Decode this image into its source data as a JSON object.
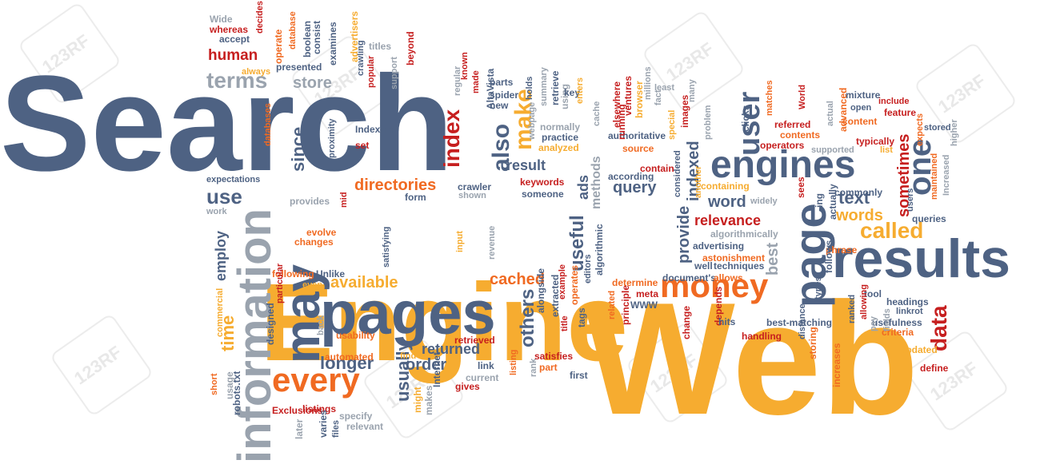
{
  "colors": {
    "slate": "#4e6283",
    "yellow": "#f6ac30",
    "orange": "#f06a22",
    "red": "#c61f1f",
    "grey": "#9aa3ae"
  },
  "watermark": "123RF",
  "words": [
    {
      "t": "Search",
      "c": "slate"
    },
    {
      "t": "Engine",
      "c": "yellow"
    },
    {
      "t": "Web",
      "c": "yellow"
    },
    {
      "t": "results",
      "c": "slate"
    },
    {
      "t": "pages",
      "c": "slate"
    },
    {
      "t": "information",
      "c": "grey"
    },
    {
      "t": "engines",
      "c": "slate"
    },
    {
      "t": "page",
      "c": "slate"
    },
    {
      "t": "money",
      "c": "orange"
    },
    {
      "t": "may",
      "c": "slate"
    },
    {
      "t": "every",
      "c": "orange"
    },
    {
      "t": "index",
      "c": "red"
    },
    {
      "t": "user",
      "c": "slate"
    },
    {
      "t": "one",
      "c": "slate"
    },
    {
      "t": "terms",
      "c": "grey"
    },
    {
      "t": "store",
      "c": "grey"
    },
    {
      "t": "human",
      "c": "red"
    },
    {
      "t": "called",
      "c": "yellow"
    },
    {
      "t": "also",
      "c": "slate"
    },
    {
      "t": "make",
      "c": "yellow"
    },
    {
      "t": "since",
      "c": "slate"
    },
    {
      "t": "use",
      "c": "slate"
    },
    {
      "t": "directories",
      "c": "orange"
    },
    {
      "t": "result",
      "c": "slate"
    },
    {
      "t": "query",
      "c": "slate"
    },
    {
      "t": "indexed",
      "c": "slate"
    },
    {
      "t": "sometimes",
      "c": "red"
    },
    {
      "t": "text",
      "c": "slate"
    },
    {
      "t": "word",
      "c": "slate"
    },
    {
      "t": "relevance",
      "c": "red"
    },
    {
      "t": "words",
      "c": "yellow"
    },
    {
      "t": "provide",
      "c": "slate"
    },
    {
      "t": "available",
      "c": "yellow"
    },
    {
      "t": "cached",
      "c": "orange"
    },
    {
      "t": "useful",
      "c": "slate"
    },
    {
      "t": "returned",
      "c": "slate"
    },
    {
      "t": "longer",
      "c": "slate"
    },
    {
      "t": "order",
      "c": "slate"
    },
    {
      "t": "usually",
      "c": "slate"
    },
    {
      "t": "others",
      "c": "slate"
    },
    {
      "t": "data",
      "c": "red"
    },
    {
      "t": "time",
      "c": "yellow"
    },
    {
      "t": "employ",
      "c": "slate"
    },
    {
      "t": "best",
      "c": "grey"
    },
    {
      "t": "ads",
      "c": "slate"
    },
    {
      "t": "methods",
      "c": "grey"
    },
    {
      "t": "Wide",
      "c": "grey"
    },
    {
      "t": "whereas",
      "c": "red"
    },
    {
      "t": "accept",
      "c": "slate"
    },
    {
      "t": "decides",
      "c": "red"
    },
    {
      "t": "operate",
      "c": "orange"
    },
    {
      "t": "database",
      "c": "orange"
    },
    {
      "t": "boolean",
      "c": "slate"
    },
    {
      "t": "consist",
      "c": "slate"
    },
    {
      "t": "examines",
      "c": "slate"
    },
    {
      "t": "titles",
      "c": "grey"
    },
    {
      "t": "beyond",
      "c": "red"
    },
    {
      "t": "always",
      "c": "yellow"
    },
    {
      "t": "presented",
      "c": "slate"
    },
    {
      "t": "crawling",
      "c": "slate"
    },
    {
      "t": "advertisers",
      "c": "yellow"
    },
    {
      "t": "popular",
      "c": "red"
    },
    {
      "t": "support",
      "c": "grey"
    },
    {
      "t": "regular",
      "c": "grey"
    },
    {
      "t": "known",
      "c": "red"
    },
    {
      "t": "made",
      "c": "red"
    },
    {
      "t": "parts",
      "c": "slate"
    },
    {
      "t": "spider",
      "c": "slate"
    },
    {
      "t": "new",
      "c": "slate"
    },
    {
      "t": "AltaVista",
      "c": "slate"
    },
    {
      "t": "holds",
      "c": "slate"
    },
    {
      "t": "summary",
      "c": "grey"
    },
    {
      "t": "retrieve",
      "c": "slate"
    },
    {
      "t": "using",
      "c": "grey"
    },
    {
      "t": "key",
      "c": "slate"
    },
    {
      "t": "enters",
      "c": "yellow"
    },
    {
      "t": "cache",
      "c": "grey"
    },
    {
      "t": "normally",
      "c": "grey"
    },
    {
      "t": "practice",
      "c": "slate"
    },
    {
      "t": "analyzed",
      "c": "yellow"
    },
    {
      "t": "webpage",
      "c": "grey"
    },
    {
      "t": "Indexing",
      "c": "slate"
    },
    {
      "t": "set",
      "c": "red"
    },
    {
      "t": "databases",
      "c": "orange"
    },
    {
      "t": "proximity",
      "c": "slate"
    },
    {
      "t": "expectations",
      "c": "slate"
    },
    {
      "t": "provides",
      "c": "grey"
    },
    {
      "t": "mid",
      "c": "red"
    },
    {
      "t": "work",
      "c": "grey"
    },
    {
      "t": "evolve",
      "c": "orange"
    },
    {
      "t": "changes",
      "c": "orange"
    },
    {
      "t": "form",
      "c": "slate"
    },
    {
      "t": "crawler",
      "c": "slate"
    },
    {
      "t": "shown",
      "c": "grey"
    },
    {
      "t": "keywords",
      "c": "red"
    },
    {
      "t": "someone",
      "c": "slate"
    },
    {
      "t": "satisfying",
      "c": "slate"
    },
    {
      "t": "input",
      "c": "yellow"
    },
    {
      "t": "revenue",
      "c": "grey"
    },
    {
      "t": "following",
      "c": "orange"
    },
    {
      "t": "Unlike",
      "c": "slate"
    },
    {
      "t": "even",
      "c": "yellow"
    },
    {
      "t": "particular",
      "c": "red"
    },
    {
      "t": "designed",
      "c": "slate"
    },
    {
      "t": "commercial",
      "c": "yellow"
    },
    {
      "t": "back",
      "c": "grey"
    },
    {
      "t": "usability",
      "c": "orange"
    },
    {
      "t": "automated",
      "c": "orange"
    },
    {
      "t": "retrieved",
      "c": "red"
    },
    {
      "t": "find",
      "c": "yellow"
    },
    {
      "t": "link",
      "c": "slate"
    },
    {
      "t": "current",
      "c": "grey"
    },
    {
      "t": "gives",
      "c": "red"
    },
    {
      "t": "listing",
      "c": "orange"
    },
    {
      "t": "rank",
      "c": "grey"
    },
    {
      "t": "satisfies",
      "c": "red"
    },
    {
      "t": "part",
      "c": "orange"
    },
    {
      "t": "first",
      "c": "slate"
    },
    {
      "t": "title",
      "c": "red"
    },
    {
      "t": "tags",
      "c": "slate"
    },
    {
      "t": "extracted",
      "c": "slate"
    },
    {
      "t": "alongside",
      "c": "slate"
    },
    {
      "t": "example",
      "c": "red"
    },
    {
      "t": "operates",
      "c": "orange"
    },
    {
      "t": "editors",
      "c": "slate"
    },
    {
      "t": "algorithmic",
      "c": "slate"
    },
    {
      "t": "related",
      "c": "orange"
    },
    {
      "t": "principle",
      "c": "red"
    },
    {
      "t": "WWW",
      "c": "slate"
    },
    {
      "t": "meta",
      "c": "red"
    },
    {
      "t": "determine",
      "c": "orange"
    },
    {
      "t": "change",
      "c": "red"
    },
    {
      "t": "depends",
      "c": "red"
    },
    {
      "t": "document's",
      "c": "slate"
    },
    {
      "t": "allows",
      "c": "orange"
    },
    {
      "t": "well",
      "c": "slate"
    },
    {
      "t": "techniques",
      "c": "slate"
    },
    {
      "t": "astonishment",
      "c": "orange"
    },
    {
      "t": "advertising",
      "c": "slate"
    },
    {
      "t": "algorithmically",
      "c": "grey"
    },
    {
      "t": "containing",
      "c": "yellow"
    },
    {
      "t": "widely",
      "c": "grey"
    },
    {
      "t": "sees",
      "c": "red"
    },
    {
      "t": "according",
      "c": "slate"
    },
    {
      "t": "contain",
      "c": "red"
    },
    {
      "t": "source",
      "c": "orange"
    },
    {
      "t": "authoritative",
      "c": "slate"
    },
    {
      "t": "running",
      "c": "red"
    },
    {
      "t": "ventures",
      "c": "red"
    },
    {
      "t": "elsewhere",
      "c": "red"
    },
    {
      "t": "browser",
      "c": "yellow"
    },
    {
      "t": "millions",
      "c": "grey"
    },
    {
      "t": "fact",
      "c": "grey"
    },
    {
      "t": "least",
      "c": "grey"
    },
    {
      "t": "many",
      "c": "grey"
    },
    {
      "t": "special",
      "c": "yellow"
    },
    {
      "t": "images",
      "c": "red"
    },
    {
      "t": "considered",
      "c": "slate"
    },
    {
      "t": "another",
      "c": "yellow"
    },
    {
      "t": "problem",
      "c": "grey"
    },
    {
      "t": "clicks",
      "c": "slate"
    },
    {
      "t": "matches",
      "c": "orange"
    },
    {
      "t": "referred",
      "c": "red"
    },
    {
      "t": "contents",
      "c": "orange"
    },
    {
      "t": "operators",
      "c": "red"
    },
    {
      "t": "World",
      "c": "red"
    },
    {
      "t": "actual",
      "c": "grey"
    },
    {
      "t": "advanced",
      "c": "orange"
    },
    {
      "t": "open",
      "c": "slate"
    },
    {
      "t": "content",
      "c": "orange"
    },
    {
      "t": "mixture",
      "c": "slate"
    },
    {
      "t": "include",
      "c": "red"
    },
    {
      "t": "feature",
      "c": "red"
    },
    {
      "t": "typically",
      "c": "red"
    },
    {
      "t": "list",
      "c": "yellow"
    },
    {
      "t": "supported",
      "c": "grey"
    },
    {
      "t": "expects",
      "c": "orange"
    },
    {
      "t": "stored",
      "c": "slate"
    },
    {
      "t": "higher",
      "c": "grey"
    },
    {
      "t": "Increased",
      "c": "grey"
    },
    {
      "t": "maintained",
      "c": "orange"
    },
    {
      "t": "commonly",
      "c": "slate"
    },
    {
      "t": "queries",
      "c": "slate"
    },
    {
      "t": "users",
      "c": "slate"
    },
    {
      "t": "ing",
      "c": "slate"
    },
    {
      "t": "actually",
      "c": "slate"
    },
    {
      "t": "phrase",
      "c": "orange"
    },
    {
      "t": "follows",
      "c": "slate"
    },
    {
      "t": "types",
      "c": "slate"
    },
    {
      "t": "tool",
      "c": "slate"
    },
    {
      "t": "headings",
      "c": "slate"
    },
    {
      "t": "linkrot",
      "c": "slate"
    },
    {
      "t": "usefulness",
      "c": "slate"
    },
    {
      "t": "criteria",
      "c": "orange"
    },
    {
      "t": "updated",
      "c": "yellow"
    },
    {
      "t": "define",
      "c": "red"
    },
    {
      "t": "fields",
      "c": "grey"
    },
    {
      "t": "pay",
      "c": "grey"
    },
    {
      "t": "allowing",
      "c": "red"
    },
    {
      "t": "ranked",
      "c": "slate"
    },
    {
      "t": "best-matching",
      "c": "slate"
    },
    {
      "t": "hits",
      "c": "slate"
    },
    {
      "t": "handling",
      "c": "red"
    },
    {
      "t": "distance",
      "c": "slate"
    },
    {
      "t": "storing",
      "c": "orange"
    },
    {
      "t": "increases",
      "c": "orange"
    },
    {
      "t": "short",
      "c": "orange"
    },
    {
      "t": "usage",
      "c": "grey"
    },
    {
      "t": "robots.txt",
      "c": "slate"
    },
    {
      "t": "Exclusions",
      "c": "red"
    },
    {
      "t": "listings",
      "c": "red"
    },
    {
      "t": "specify",
      "c": "grey"
    },
    {
      "t": "relevant",
      "c": "grey"
    },
    {
      "t": "later",
      "c": "grey"
    },
    {
      "t": "varies",
      "c": "slate"
    },
    {
      "t": "files",
      "c": "slate"
    },
    {
      "t": "might",
      "c": "yellow"
    },
    {
      "t": "makes",
      "c": "grey"
    },
    {
      "t": "Internet",
      "c": "slate"
    },
    {
      "t": "mine",
      "c": "slate"
    }
  ]
}
